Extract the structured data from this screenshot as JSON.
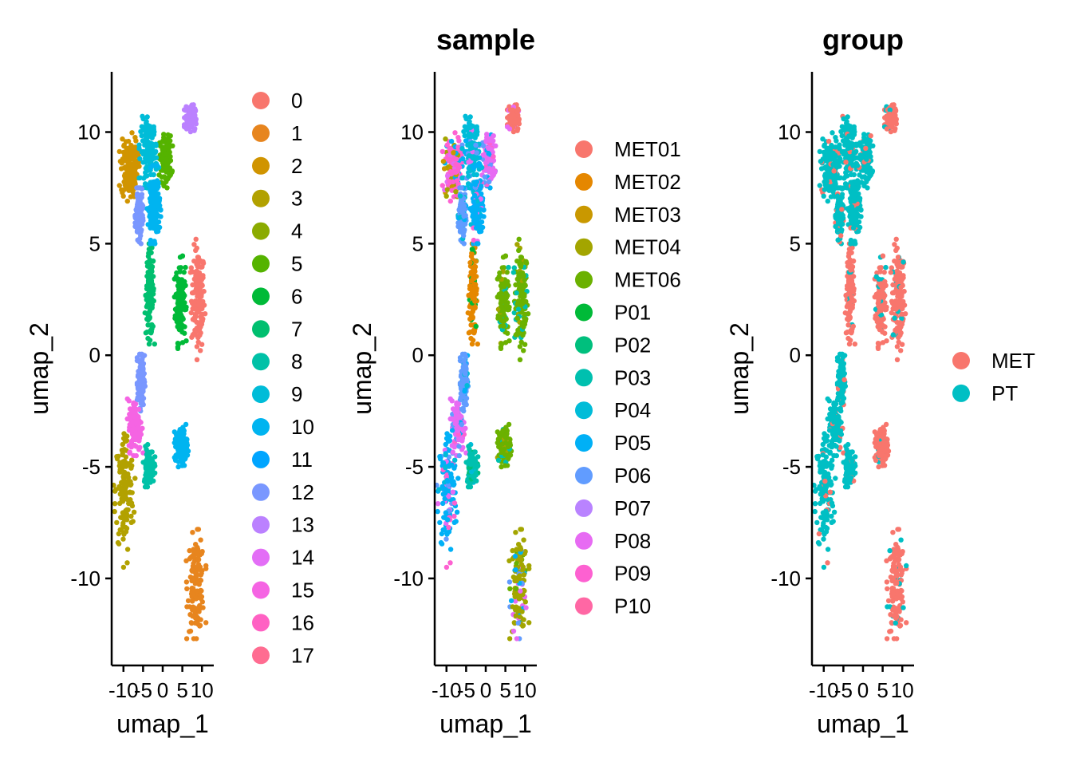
{
  "chart_data": [
    {
      "type": "scatter",
      "title": "",
      "xlabel": "umap_1",
      "ylabel": "umap_2",
      "xlim": [
        -13,
        13
      ],
      "ylim": [
        -13.9,
        12.7
      ],
      "x_ticks": [
        -10,
        -5,
        0,
        5,
        10
      ],
      "x_tick_labels": [
        "-10",
        "-5",
        "0",
        "5",
        "10"
      ],
      "y_ticks": [
        -10,
        -5,
        0,
        5,
        10
      ],
      "y_tick_labels": [
        "-10",
        "-5",
        "0",
        "5",
        "10"
      ],
      "grid": false,
      "legend_position": "right",
      "color_by": "cluster",
      "legend": [
        {
          "label": "0",
          "color": "#F8766D"
        },
        {
          "label": "1",
          "color": "#E7851E"
        },
        {
          "label": "2",
          "color": "#D09400"
        },
        {
          "label": "3",
          "color": "#B2A100"
        },
        {
          "label": "4",
          "color": "#8BAB00"
        },
        {
          "label": "5",
          "color": "#55B300"
        },
        {
          "label": "6",
          "color": "#00BA38"
        },
        {
          "label": "7",
          "color": "#00BF6F"
        },
        {
          "label": "8",
          "color": "#00C1A7"
        },
        {
          "label": "9",
          "color": "#00BCD8"
        },
        {
          "label": "10",
          "color": "#00B4F0"
        },
        {
          "label": "11",
          "color": "#00A5FF"
        },
        {
          "label": "12",
          "color": "#7997FF"
        },
        {
          "label": "13",
          "color": "#BB81FF"
        },
        {
          "label": "14",
          "color": "#E36EF6"
        },
        {
          "label": "15",
          "color": "#F564E3"
        },
        {
          "label": "16",
          "color": "#FF61C3"
        },
        {
          "label": "17",
          "color": "#FF6C91"
        }
      ]
    },
    {
      "type": "scatter",
      "title": "sample",
      "xlabel": "umap_1",
      "ylabel": "umap_2",
      "xlim": [
        -13,
        13
      ],
      "ylim": [
        -13.9,
        12.7
      ],
      "x_ticks": [
        -10,
        -5,
        0,
        5,
        10
      ],
      "x_tick_labels": [
        "-10",
        "-5",
        "0",
        "5",
        "10"
      ],
      "y_ticks": [
        -10,
        -5,
        0,
        5,
        10
      ],
      "y_tick_labels": [
        "-10",
        "-5",
        "0",
        "5",
        "10"
      ],
      "grid": false,
      "legend_position": "right",
      "color_by": "sample",
      "legend": [
        {
          "label": "MET01",
          "color": "#F8766D"
        },
        {
          "label": "MET02",
          "color": "#E58700"
        },
        {
          "label": "MET03",
          "color": "#C99800"
        },
        {
          "label": "MET04",
          "color": "#A3A500"
        },
        {
          "label": "MET06",
          "color": "#6BB100"
        },
        {
          "label": "P01",
          "color": "#00BA38"
        },
        {
          "label": "P02",
          "color": "#00BF7D"
        },
        {
          "label": "P03",
          "color": "#00C0AF"
        },
        {
          "label": "P04",
          "color": "#00BCD8"
        },
        {
          "label": "P05",
          "color": "#00B0F6"
        },
        {
          "label": "P06",
          "color": "#619CFF"
        },
        {
          "label": "P07",
          "color": "#B983FF"
        },
        {
          "label": "P08",
          "color": "#E76BF3"
        },
        {
          "label": "P09",
          "color": "#FD61D1"
        },
        {
          "label": "P10",
          "color": "#FF67A4"
        }
      ]
    },
    {
      "type": "scatter",
      "title": "group",
      "xlabel": "umap_1",
      "ylabel": "umap_2",
      "xlim": [
        -13,
        13
      ],
      "ylim": [
        -13.9,
        12.7
      ],
      "x_ticks": [
        -10,
        -5,
        0,
        5,
        10
      ],
      "x_tick_labels": [
        "-10",
        "-5",
        "0",
        "5",
        "10"
      ],
      "y_ticks": [
        -10,
        -5,
        0,
        5,
        10
      ],
      "y_tick_labels": [
        "-10",
        "-5",
        "0",
        "5",
        "10"
      ],
      "grid": false,
      "legend_position": "right",
      "color_by": "group",
      "legend": [
        {
          "label": "MET",
          "color": "#F8766D"
        },
        {
          "label": "PT",
          "color": "#00BFC4"
        }
      ]
    }
  ],
  "point_clouds": [
    {
      "cluster": "0",
      "x": [
        7,
        11
      ],
      "y": [
        -0.2,
        5.2
      ],
      "sample": "MET06",
      "group": "MET"
    },
    {
      "cluster": "6",
      "x": [
        3,
        6
      ],
      "y": [
        0.3,
        4.5
      ],
      "sample": "MET06",
      "group": "MET"
    },
    {
      "cluster": "7",
      "x": [
        -4.5,
        -2
      ],
      "y": [
        0.5,
        5
      ],
      "sample": "MET02",
      "group": "MET"
    },
    {
      "cluster": "1",
      "x": [
        6,
        11
      ],
      "y": [
        -12.7,
        -7.8
      ],
      "sample": "MET04",
      "group": "MET"
    },
    {
      "cluster": "3",
      "x": [
        -12.5,
        -7
      ],
      "y": [
        -9.5,
        -2.8
      ],
      "sample": "P05",
      "group": "PT"
    },
    {
      "cluster": "2",
      "x": [
        -11,
        -6
      ],
      "y": [
        6.8,
        10
      ],
      "sample": "P09",
      "group": "PT"
    },
    {
      "cluster": "5",
      "x": [
        -1,
        2.5
      ],
      "y": [
        7.5,
        10
      ],
      "sample": "P08",
      "group": "PT"
    },
    {
      "cluster": "9",
      "x": [
        -6,
        -1
      ],
      "y": [
        7.5,
        10.8
      ],
      "sample": "P04",
      "group": "PT"
    },
    {
      "cluster": "10",
      "x": [
        -4,
        -0.5
      ],
      "y": [
        5,
        8.5
      ],
      "sample": "P05",
      "group": "PT"
    },
    {
      "cluster": "12",
      "x": [
        -7,
        -5
      ],
      "y": [
        5,
        7.5
      ],
      "sample": "P06",
      "group": "PT"
    },
    {
      "cluster": "13",
      "x": [
        5.5,
        8.5
      ],
      "y": [
        10,
        11.3
      ],
      "sample": "MET01",
      "group": "MET"
    },
    {
      "cluster": "12",
      "x": [
        -6.5,
        -4.5
      ],
      "y": [
        -2.5,
        0.2
      ],
      "sample": "P06",
      "group": "PT"
    },
    {
      "cluster": "15",
      "x": [
        -9,
        -5
      ],
      "y": [
        -4.5,
        -1.8
      ],
      "sample": "P08",
      "group": "PT"
    },
    {
      "cluster": "8",
      "x": [
        -5,
        -2
      ],
      "y": [
        -5.9,
        -4.0
      ],
      "sample": "P03",
      "group": "PT"
    },
    {
      "cluster": "10",
      "x": [
        3,
        6.5
      ],
      "y": [
        -5,
        -3.1
      ],
      "sample": "MET06",
      "group": "MET"
    }
  ]
}
